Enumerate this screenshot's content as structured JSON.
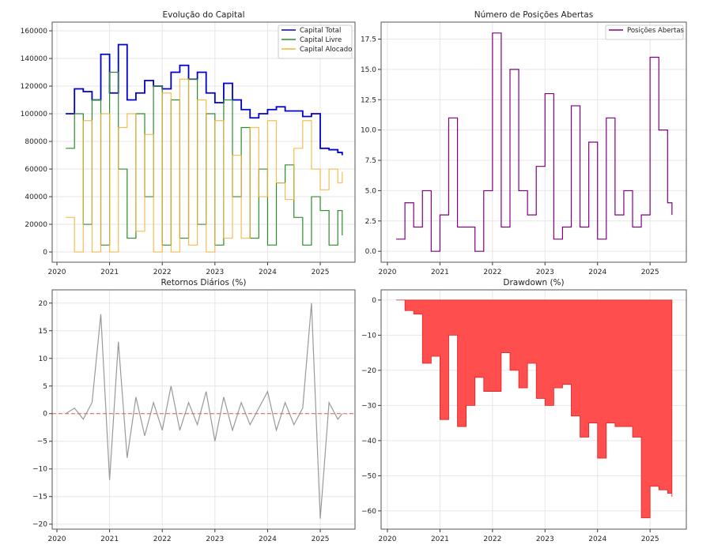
{
  "chart_data": [
    {
      "type": "line",
      "title": "Evolução do Capital",
      "xlim": [
        2019.91,
        2025.66
      ],
      "ylim": [
        -7400,
        166300
      ],
      "xticks": [
        2020,
        2021,
        2022,
        2023,
        2024,
        2025
      ],
      "yticks": [
        0,
        20000,
        40000,
        60000,
        80000,
        100000,
        120000,
        140000,
        160000
      ],
      "grid": true,
      "legend": "top-right",
      "x": [
        "2020-03",
        "2020-05",
        "2020-07",
        "2020-09",
        "2020-11",
        "2021-01",
        "2021-03",
        "2021-05",
        "2021-07",
        "2021-09",
        "2021-11",
        "2022-01",
        "2022-03",
        "2022-05",
        "2022-07",
        "2022-09",
        "2022-11",
        "2023-01",
        "2023-03",
        "2023-05",
        "2023-07",
        "2023-09",
        "2023-11",
        "2024-01",
        "2024-03",
        "2024-05",
        "2024-07",
        "2024-09",
        "2024-11",
        "2025-01",
        "2025-03",
        "2025-05",
        "2025-06"
      ],
      "series": [
        {
          "name": "Capital Total",
          "color": "#0000cc",
          "values": [
            100000,
            118000,
            116000,
            110000,
            143000,
            115000,
            150000,
            110000,
            115000,
            124000,
            120000,
            118000,
            130000,
            135000,
            125000,
            130000,
            115000,
            108000,
            122000,
            110000,
            103000,
            97000,
            100000,
            103000,
            105000,
            102000,
            102000,
            98000,
            100000,
            75000,
            74000,
            72000,
            70000
          ]
        },
        {
          "name": "Capital Livre",
          "color": "#2e8b2e",
          "values": [
            75000,
            100000,
            20000,
            110000,
            5000,
            130000,
            60000,
            10000,
            100000,
            40000,
            120000,
            5000,
            110000,
            10000,
            125000,
            20000,
            100000,
            5000,
            110000,
            40000,
            90000,
            10000,
            60000,
            5000,
            50000,
            63000,
            25000,
            5000,
            40000,
            30000,
            5000,
            30000,
            12000
          ]
        },
        {
          "name": "Capital Alocado",
          "color": "#f5b335",
          "values": [
            25000,
            0,
            95000,
            0,
            100000,
            0,
            90000,
            100000,
            15000,
            85000,
            0,
            115000,
            0,
            125000,
            5000,
            110000,
            0,
            95000,
            10000,
            70000,
            10000,
            90000,
            40000,
            95000,
            50000,
            38000,
            75000,
            95000,
            60000,
            45000,
            60000,
            50000,
            58000
          ]
        }
      ]
    },
    {
      "type": "line",
      "title": "Número de Posições Abertas",
      "xlim": [
        2019.88,
        2025.69
      ],
      "ylim": [
        -0.9,
        18.9
      ],
      "xticks": [
        2020,
        2021,
        2022,
        2023,
        2024,
        2025
      ],
      "yticks": [
        0.0,
        2.5,
        5.0,
        7.5,
        10.0,
        12.5,
        15.0,
        17.5
      ],
      "grid": true,
      "legend": "top-right",
      "x": [
        "2020-03",
        "2020-05",
        "2020-07",
        "2020-09",
        "2020-11",
        "2021-01",
        "2021-03",
        "2021-05",
        "2021-07",
        "2021-09",
        "2021-11",
        "2022-01",
        "2022-03",
        "2022-05",
        "2022-07",
        "2022-09",
        "2022-11",
        "2023-01",
        "2023-03",
        "2023-05",
        "2023-07",
        "2023-09",
        "2023-11",
        "2024-01",
        "2024-03",
        "2024-05",
        "2024-07",
        "2024-09",
        "2024-11",
        "2025-01",
        "2025-03",
        "2025-05",
        "2025-06"
      ],
      "series": [
        {
          "name": "Posições Abertas",
          "color": "#800080",
          "values": [
            1,
            4,
            2,
            5,
            0,
            3,
            11,
            2,
            2,
            0,
            5,
            18,
            2,
            15,
            5,
            3,
            7,
            13,
            1,
            2,
            12,
            2,
            9,
            1,
            11,
            3,
            5,
            2,
            3,
            16,
            10,
            4,
            3
          ]
        }
      ]
    },
    {
      "type": "line",
      "title": "Retornos Diários (%)",
      "xlim": [
        2019.91,
        2025.66
      ],
      "ylim": [
        -20.9,
        22.4
      ],
      "xticks": [
        2020,
        2021,
        2022,
        2023,
        2024,
        2025
      ],
      "yticks": [
        -20,
        -15,
        -10,
        -5,
        0,
        5,
        10,
        15,
        20
      ],
      "grid": true,
      "hline": 0,
      "x": [
        "2020-03",
        "2020-05",
        "2020-07",
        "2020-09",
        "2020-11",
        "2021-01",
        "2021-03",
        "2021-05",
        "2021-07",
        "2021-09",
        "2021-11",
        "2022-01",
        "2022-03",
        "2022-05",
        "2022-07",
        "2022-09",
        "2022-11",
        "2023-01",
        "2023-03",
        "2023-05",
        "2023-07",
        "2023-09",
        "2023-11",
        "2024-01",
        "2024-03",
        "2024-05",
        "2024-07",
        "2024-09",
        "2024-11",
        "2025-01",
        "2025-03",
        "2025-05",
        "2025-06"
      ],
      "series": [
        {
          "color": "#999999",
          "values": [
            0,
            1,
            -1,
            2,
            18,
            -12,
            13,
            -8,
            3,
            -4,
            2,
            -3,
            5,
            -3,
            2,
            -2,
            4,
            -5,
            3,
            -3,
            2,
            -2,
            1,
            4,
            -3,
            2,
            -2,
            1,
            20,
            -19,
            2,
            -1,
            0
          ]
        }
      ]
    },
    {
      "type": "area",
      "title": "Drawdown (%)",
      "xlim": [
        2019.88,
        2025.69
      ],
      "ylim": [
        -65.2,
        2.9
      ],
      "xticks": [
        2020,
        2021,
        2022,
        2023,
        2024,
        2025
      ],
      "yticks": [
        -60,
        -50,
        -40,
        -30,
        -20,
        -10,
        0
      ],
      "grid": true,
      "x": [
        "2020-03",
        "2020-05",
        "2020-07",
        "2020-09",
        "2020-11",
        "2021-01",
        "2021-03",
        "2021-05",
        "2021-07",
        "2021-09",
        "2021-11",
        "2022-01",
        "2022-03",
        "2022-05",
        "2022-07",
        "2022-09",
        "2022-11",
        "2023-01",
        "2023-03",
        "2023-05",
        "2023-07",
        "2023-09",
        "2023-11",
        "2024-01",
        "2024-03",
        "2024-05",
        "2024-07",
        "2024-09",
        "2024-11",
        "2025-01",
        "2025-03",
        "2025-05",
        "2025-06"
      ],
      "series": [
        {
          "color": "#ff4444",
          "values": [
            0,
            -3,
            -4,
            -18,
            -16,
            -34,
            -10,
            -36,
            -30,
            -22,
            -26,
            -26,
            -15,
            -20,
            -25,
            -18,
            -28,
            -30,
            -25,
            -24,
            -33,
            -39,
            -35,
            -45,
            -35,
            -36,
            -36,
            -39,
            -62,
            -53,
            -54,
            -55,
            -56
          ]
        }
      ]
    }
  ]
}
